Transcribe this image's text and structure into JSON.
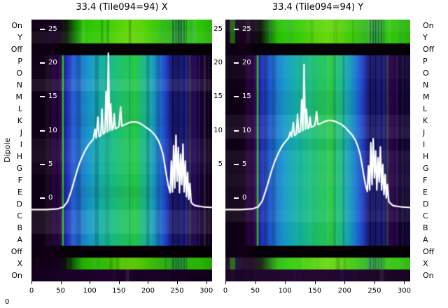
{
  "figure": {
    "left_axis_title": "Dipole",
    "row_labels": [
      "On",
      "Y",
      "Off",
      "P",
      "O",
      "N",
      "M",
      "L",
      "K",
      "J",
      "I",
      "H",
      "G",
      "F",
      "E",
      "D",
      "C",
      "B",
      "A",
      "Off",
      "X",
      "On"
    ],
    "row_kinds": [
      "green",
      "green",
      "off",
      "active",
      "active",
      "active",
      "active",
      "active",
      "active",
      "active",
      "active",
      "active",
      "active",
      "active",
      "active",
      "active",
      "active",
      "active",
      "active",
      "off",
      "green",
      "dark"
    ],
    "x_ticks": [
      0,
      50,
      100,
      150,
      200,
      250,
      300
    ],
    "y_ticks": [
      25,
      20,
      15,
      10,
      5,
      0
    ],
    "gap_y_ticks": [
      25,
      20,
      15,
      10,
      5
    ],
    "stray_zero_label": "0",
    "colors": {
      "line": "#ffffff",
      "background": "#ffffff",
      "text": "#000000",
      "inner_tick_text": "#ffffff"
    },
    "profiles": {
      "active": [
        [
          0,
          "#0e0014"
        ],
        [
          40,
          "#140019"
        ],
        [
          48,
          "#2e0548"
        ],
        [
          52,
          "#3a0a6a"
        ],
        [
          57,
          "#2618a8"
        ],
        [
          62,
          "#2136c0"
        ],
        [
          72,
          "#1e55cc"
        ],
        [
          85,
          "#1b7ad2"
        ],
        [
          100,
          "#189bca"
        ],
        [
          115,
          "#17adae"
        ],
        [
          130,
          "#16b894"
        ],
        [
          145,
          "#1cc078"
        ],
        [
          160,
          "#22c45f"
        ],
        [
          175,
          "#24c455"
        ],
        [
          190,
          "#1fbe7a"
        ],
        [
          205,
          "#18a8b4"
        ],
        [
          215,
          "#1a86cc"
        ],
        [
          224,
          "#1e60d0"
        ],
        [
          231,
          "#2240c4"
        ],
        [
          236,
          "#202898"
        ],
        [
          240,
          "#1b1b72"
        ],
        [
          266,
          "#1b1a6e"
        ],
        [
          271,
          "#320a58"
        ],
        [
          280,
          "#250544"
        ],
        [
          290,
          "#1a0128"
        ],
        [
          300,
          "#13001a"
        ],
        [
          310,
          "#0e0014"
        ]
      ],
      "green": [
        [
          0,
          "#130017"
        ],
        [
          45,
          "#170120"
        ],
        [
          60,
          "#0d1a06"
        ],
        [
          75,
          "#157a08"
        ],
        [
          88,
          "#27bc04"
        ],
        [
          100,
          "#2cc805"
        ],
        [
          125,
          "#38cc06"
        ],
        [
          150,
          "#55d408"
        ],
        [
          170,
          "#66d809"
        ],
        [
          190,
          "#5ad408"
        ],
        [
          210,
          "#3ecc07"
        ],
        [
          235,
          "#2fb81c"
        ],
        [
          255,
          "#2aa62e"
        ],
        [
          270,
          "#2ec40c"
        ],
        [
          290,
          "#2cc406"
        ],
        [
          310,
          "#26b005"
        ]
      ],
      "off": [
        [
          0,
          "#0d0012"
        ],
        [
          35,
          "#120017"
        ],
        [
          50,
          "#070009"
        ],
        [
          120,
          "#050007"
        ],
        [
          310,
          "#040006"
        ]
      ],
      "dark": [
        [
          0,
          "#150120"
        ],
        [
          50,
          "#1b0228"
        ],
        [
          120,
          "#1f0330"
        ],
        [
          200,
          "#1c0229"
        ],
        [
          260,
          "#180223"
        ],
        [
          310,
          "#13011c"
        ]
      ]
    },
    "stripes": [
      {
        "ch": 38,
        "w": 10,
        "color": "#2a0646",
        "alpha": 0.8,
        "kinds": [
          "active"
        ]
      },
      {
        "ch": 54,
        "w": 3,
        "color": "#1fd40a",
        "alpha": 0.95,
        "kinds": [
          "active"
        ]
      },
      {
        "ch": 177,
        "w": 3,
        "color": "#2ed416",
        "alpha": 0.9,
        "kinds": [
          "active"
        ]
      },
      {
        "ch": 272,
        "w": 2,
        "color": "#1fae12",
        "alpha": 0.45,
        "kinds": [
          "active"
        ]
      },
      {
        "ch": 243,
        "w": 2.2,
        "color": "#0a0a3a",
        "alpha": 0.9,
        "kinds": [
          "active",
          "green"
        ]
      },
      {
        "ch": 248,
        "w": 2,
        "color": "#121266",
        "alpha": 0.85,
        "kinds": [
          "active",
          "green"
        ]
      },
      {
        "ch": 252,
        "w": 2,
        "color": "#090936",
        "alpha": 0.85,
        "kinds": [
          "active",
          "green"
        ]
      },
      {
        "ch": 257,
        "w": 2,
        "color": "#181884",
        "alpha": 0.8,
        "kinds": [
          "active",
          "green"
        ]
      },
      {
        "ch": 262,
        "w": 2,
        "color": "#0a0a3a",
        "alpha": 0.8,
        "kinds": [
          "active",
          "green"
        ]
      },
      {
        "ch": 266,
        "w": 1.6,
        "color": "#222294",
        "alpha": 0.75,
        "kinds": [
          "active",
          "green"
        ]
      },
      {
        "ch": 288,
        "w": 1.6,
        "color": "#2a2ab0",
        "alpha": 0.7,
        "kinds": [
          "active"
        ]
      },
      {
        "ch": 297,
        "w": 1.6,
        "color": "#2a2ab0",
        "alpha": 0.55,
        "kinds": [
          "active"
        ]
      },
      {
        "ch": 304,
        "w": 1.6,
        "color": "#262688",
        "alpha": 0.5,
        "kinds": [
          "active"
        ]
      }
    ],
    "panel_extra_stripes": [
      {
        "panel": 1,
        "ch": 12,
        "w": 9,
        "color": "#2cc405",
        "alpha": 0.9,
        "kinds": [
          "green"
        ]
      }
    ]
  },
  "chart_data": [
    {
      "type": "heatmap+line",
      "title": "33.4 (Tile094=94) X",
      "x_range": [
        0,
        310
      ],
      "value_range": [
        -2,
        26
      ],
      "x_tick_labels": [
        0,
        50,
        100,
        150,
        200,
        250,
        300
      ],
      "value_tick_labels": [
        25,
        20,
        15,
        10,
        5,
        0
      ],
      "line_color": "#ffffff",
      "bandpass": [
        [
          0,
          -1.7
        ],
        [
          25,
          -1.7
        ],
        [
          45,
          -1.6
        ],
        [
          55,
          -1.3
        ],
        [
          62,
          -0.5
        ],
        [
          68,
          1.0
        ],
        [
          73,
          2.5
        ],
        [
          78,
          4.0
        ],
        [
          83,
          5.3
        ],
        [
          88,
          6.3
        ],
        [
          93,
          7.2
        ],
        [
          98,
          7.9
        ],
        [
          103,
          8.4
        ],
        [
          106,
          8.7
        ],
        [
          109,
          10.2
        ],
        [
          111,
          8.9
        ],
        [
          114,
          12.0
        ],
        [
          116,
          9.1
        ],
        [
          119,
          9.3
        ],
        [
          121,
          13.2
        ],
        [
          123,
          9.5
        ],
        [
          126,
          9.7
        ],
        [
          128,
          15.8
        ],
        [
          130,
          9.8
        ],
        [
          132,
          21.5
        ],
        [
          134,
          10.0
        ],
        [
          136,
          14.0
        ],
        [
          138,
          10.1
        ],
        [
          140,
          10.2
        ],
        [
          142,
          12.5
        ],
        [
          144,
          10.3
        ],
        [
          147,
          10.4
        ],
        [
          150,
          10.6
        ],
        [
          153,
          13.5
        ],
        [
          155,
          10.7
        ],
        [
          158,
          10.8
        ],
        [
          163,
          11.0
        ],
        [
          168,
          11.2
        ],
        [
          173,
          11.3
        ],
        [
          178,
          11.3
        ],
        [
          183,
          11.2
        ],
        [
          188,
          11.0
        ],
        [
          193,
          10.7
        ],
        [
          198,
          10.4
        ],
        [
          203,
          10.1
        ],
        [
          208,
          9.7
        ],
        [
          213,
          9.2
        ],
        [
          218,
          8.5
        ],
        [
          222,
          7.6
        ],
        [
          226,
          6.4
        ],
        [
          229,
          4.8
        ],
        [
          232,
          3.2
        ],
        [
          235,
          1.8
        ],
        [
          238,
          0.8
        ],
        [
          240,
          5.5
        ],
        [
          242,
          0.9
        ],
        [
          244,
          7.8
        ],
        [
          246,
          1.5
        ],
        [
          248,
          9.3
        ],
        [
          250,
          2.5
        ],
        [
          252,
          7.5
        ],
        [
          254,
          0.8
        ],
        [
          256,
          6.5
        ],
        [
          258,
          2.0
        ],
        [
          260,
          8.0
        ],
        [
          262,
          0.9
        ],
        [
          264,
          5.5
        ],
        [
          266,
          0.2
        ],
        [
          268,
          3.8
        ],
        [
          270,
          -0.2
        ],
        [
          272,
          2.2
        ],
        [
          274,
          -0.6
        ],
        [
          277,
          -0.9
        ],
        [
          281,
          -1.1
        ],
        [
          287,
          -1.2
        ],
        [
          295,
          -1.3
        ],
        [
          303,
          -1.35
        ],
        [
          310,
          -1.4
        ]
      ]
    },
    {
      "type": "heatmap+line",
      "title": "33.4 (Tile094=94) Y",
      "x_range": [
        0,
        310
      ],
      "value_range": [
        -2,
        26
      ],
      "x_tick_labels": [
        0,
        50,
        100,
        150,
        200,
        250,
        300
      ],
      "value_tick_labels": [
        25,
        20,
        15,
        10,
        5,
        0
      ],
      "line_color": "#ffffff",
      "bandpass": [
        [
          0,
          -1.7
        ],
        [
          25,
          -1.7
        ],
        [
          45,
          -1.6
        ],
        [
          55,
          -1.3
        ],
        [
          62,
          -0.4
        ],
        [
          68,
          1.2
        ],
        [
          73,
          2.7
        ],
        [
          78,
          4.2
        ],
        [
          83,
          5.5
        ],
        [
          88,
          6.5
        ],
        [
          93,
          7.4
        ],
        [
          98,
          8.1
        ],
        [
          103,
          8.6
        ],
        [
          106,
          8.9
        ],
        [
          109,
          9.8
        ],
        [
          111,
          9.1
        ],
        [
          114,
          11.2
        ],
        [
          116,
          9.3
        ],
        [
          119,
          9.5
        ],
        [
          121,
          12.4
        ],
        [
          123,
          9.7
        ],
        [
          126,
          9.9
        ],
        [
          128,
          14.6
        ],
        [
          130,
          10.0
        ],
        [
          132,
          19.8
        ],
        [
          134,
          10.2
        ],
        [
          136,
          13.2
        ],
        [
          138,
          10.3
        ],
        [
          140,
          10.4
        ],
        [
          142,
          12.0
        ],
        [
          144,
          10.5
        ],
        [
          147,
          10.6
        ],
        [
          150,
          10.8
        ],
        [
          153,
          12.8
        ],
        [
          155,
          10.9
        ],
        [
          158,
          11.0
        ],
        [
          163,
          11.2
        ],
        [
          168,
          11.4
        ],
        [
          173,
          11.5
        ],
        [
          178,
          11.5
        ],
        [
          183,
          11.4
        ],
        [
          188,
          11.2
        ],
        [
          193,
          11.0
        ],
        [
          198,
          10.7
        ],
        [
          203,
          10.3
        ],
        [
          208,
          9.8
        ],
        [
          213,
          9.3
        ],
        [
          218,
          8.6
        ],
        [
          222,
          7.7
        ],
        [
          226,
          6.5
        ],
        [
          229,
          5.0
        ],
        [
          232,
          3.4
        ],
        [
          235,
          2.0
        ],
        [
          238,
          1.0
        ],
        [
          240,
          4.8
        ],
        [
          242,
          1.2
        ],
        [
          244,
          8.2
        ],
        [
          246,
          2.0
        ],
        [
          248,
          8.8
        ],
        [
          250,
          3.0
        ],
        [
          252,
          7.0
        ],
        [
          254,
          1.2
        ],
        [
          256,
          6.0
        ],
        [
          258,
          2.4
        ],
        [
          260,
          7.6
        ],
        [
          262,
          1.2
        ],
        [
          264,
          5.0
        ],
        [
          266,
          0.5
        ],
        [
          268,
          3.5
        ],
        [
          270,
          0.0
        ],
        [
          272,
          2.0
        ],
        [
          274,
          -0.5
        ],
        [
          277,
          -0.8
        ],
        [
          281,
          -1.1
        ],
        [
          287,
          -1.2
        ],
        [
          295,
          -1.3
        ],
        [
          303,
          -1.35
        ],
        [
          310,
          -1.4
        ]
      ]
    }
  ]
}
